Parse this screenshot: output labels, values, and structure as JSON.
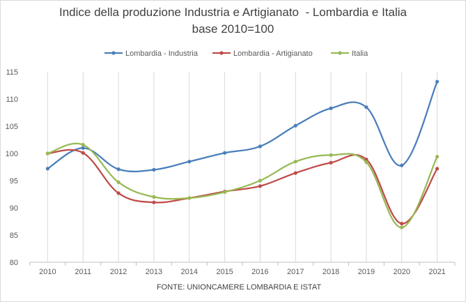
{
  "chart_data": {
    "type": "line",
    "title": "Indice della produzione Industria e Artigianato  - Lombardia e Italia",
    "subtitle": "base 2010=100",
    "source": "FONTE: UNIONCAMERE LOMBARDIA E ISTAT",
    "xlabel": "",
    "ylabel": "",
    "ylim": [
      80,
      115
    ],
    "yticks": [
      80,
      85,
      90,
      95,
      100,
      105,
      110,
      115
    ],
    "categories": [
      "2010",
      "2011",
      "2012",
      "2013",
      "2014",
      "2015",
      "2016",
      "2017",
      "2018",
      "2019",
      "2020",
      "2021"
    ],
    "grid": "vertical",
    "legend_position": "top",
    "series": [
      {
        "name": "Lombardia - Industria",
        "color": "#4a7ebb",
        "values": [
          97.2,
          101.0,
          97.1,
          97.0,
          98.5,
          100.1,
          101.3,
          105.1,
          108.3,
          108.5,
          97.8,
          113.2
        ]
      },
      {
        "name": "Lombardia - Artigianato",
        "color": "#be4b48",
        "values": [
          100.0,
          100.1,
          92.7,
          91.0,
          91.8,
          93.0,
          94.0,
          96.4,
          98.3,
          98.9,
          87.1,
          97.2
        ]
      },
      {
        "name": "Italia",
        "color": "#98b954",
        "values": [
          100.0,
          101.6,
          94.7,
          92.0,
          91.8,
          92.9,
          95.0,
          98.5,
          99.7,
          98.4,
          86.4,
          99.4
        ]
      }
    ]
  }
}
